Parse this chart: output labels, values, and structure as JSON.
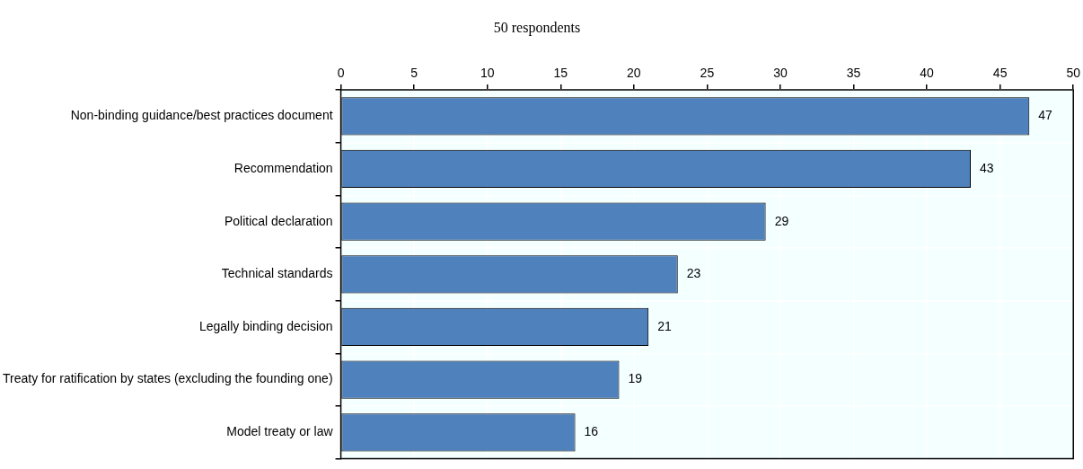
{
  "chart_data": {
    "type": "bar",
    "orientation": "horizontal",
    "title": "50 respondents",
    "categories": [
      "Non-binding guidance/best practices document",
      "Recommendation",
      "Political declaration",
      "Technical standards",
      "Legally binding decision",
      "Treaty for ratification by states (excluding the founding one)",
      "Model treaty or law"
    ],
    "values": [
      47,
      43,
      29,
      23,
      21,
      19,
      16
    ],
    "color": "#4f81bd",
    "xlim": [
      0,
      50
    ],
    "xticks": [
      0,
      5,
      10,
      15,
      20,
      25,
      30,
      35,
      40,
      45,
      50
    ],
    "grid": true,
    "data_labels": true,
    "legend": false
  }
}
